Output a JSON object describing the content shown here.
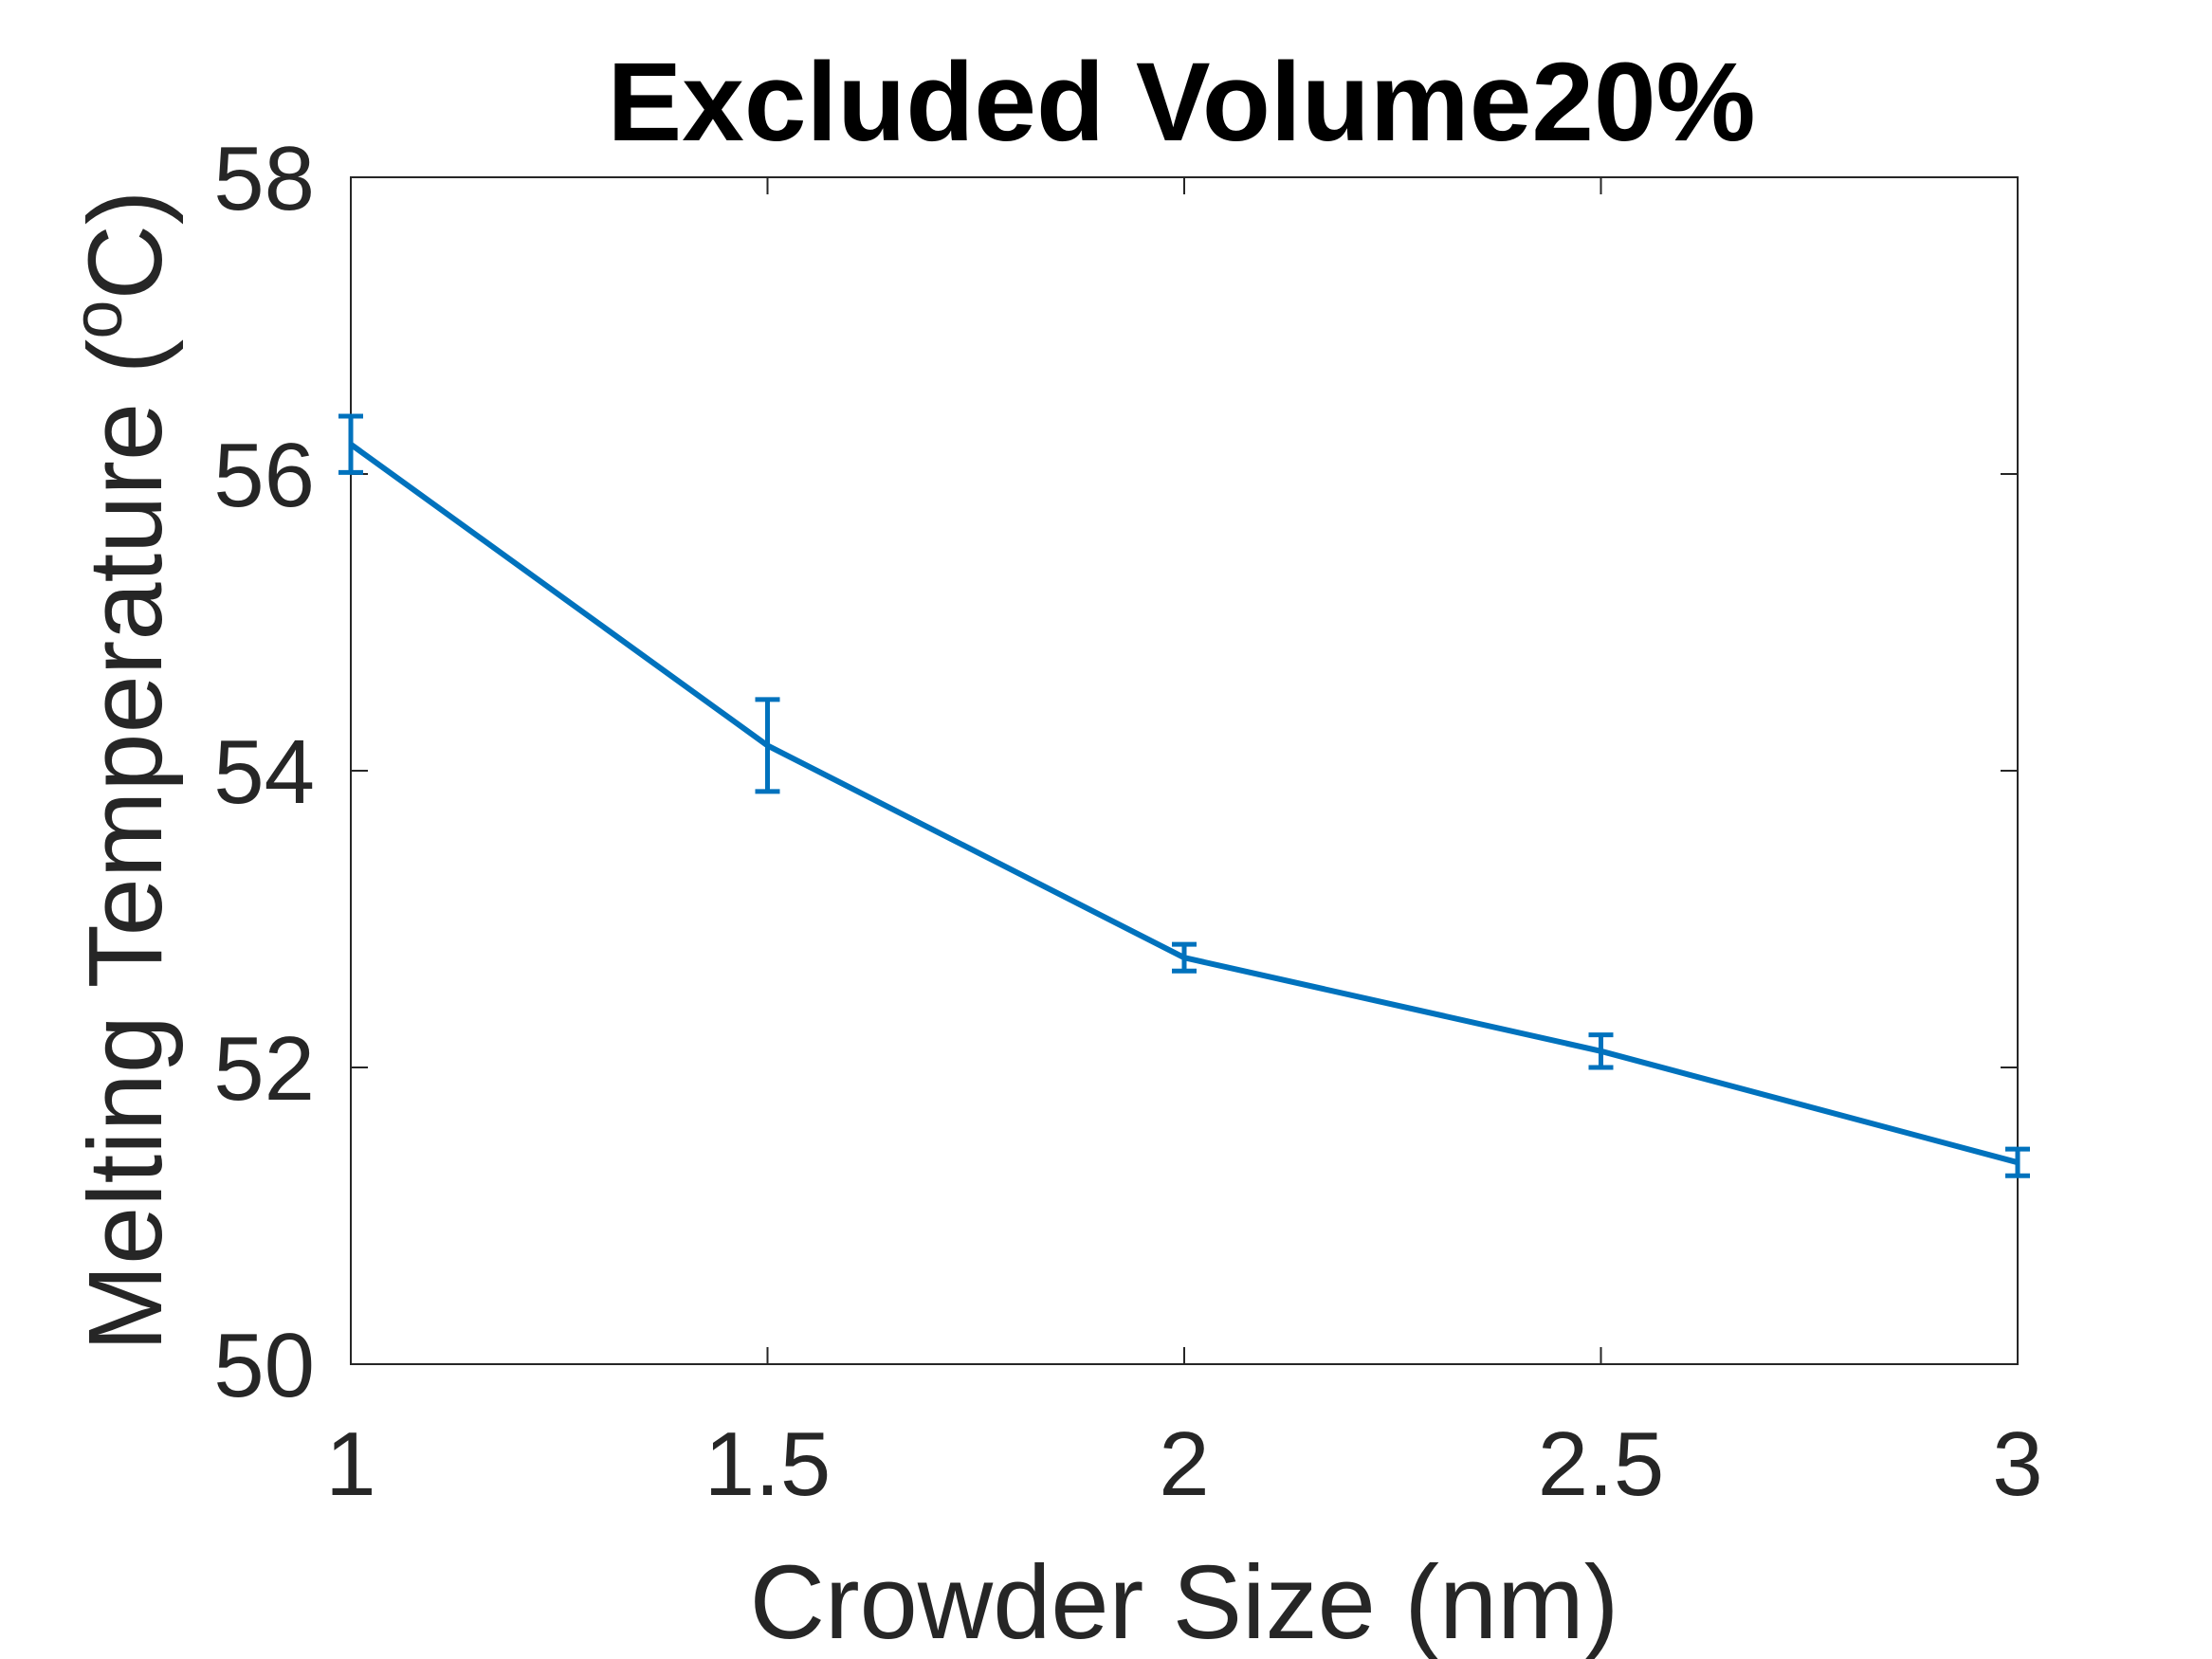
{
  "chart_data": {
    "type": "line",
    "title": "Excluded Volume20%",
    "xlabel": "Crowder Size (nm)",
    "ylabel": "Melting Temperature (",
    "ylabel_superscript": "o",
    "ylabel_suffix": "C)",
    "xlim": [
      1,
      3
    ],
    "ylim": [
      50,
      58
    ],
    "xticks": [
      1,
      1.5,
      2,
      2.5,
      3
    ],
    "xtick_labels": [
      "1",
      "1.5",
      "2",
      "2.5",
      "3"
    ],
    "yticks": [
      50,
      52,
      54,
      56,
      58
    ],
    "ytick_labels": [
      "50",
      "52",
      "54",
      "56",
      "58"
    ],
    "grid": false,
    "legend": "none",
    "color": "#0072BD",
    "series": [
      {
        "x": [
          1,
          1.5,
          2,
          2.5,
          3
        ],
        "y": [
          56.2,
          54.17,
          52.74,
          52.11,
          51.36
        ],
        "error": [
          0.19,
          0.31,
          0.09,
          0.11,
          0.09
        ]
      }
    ]
  }
}
